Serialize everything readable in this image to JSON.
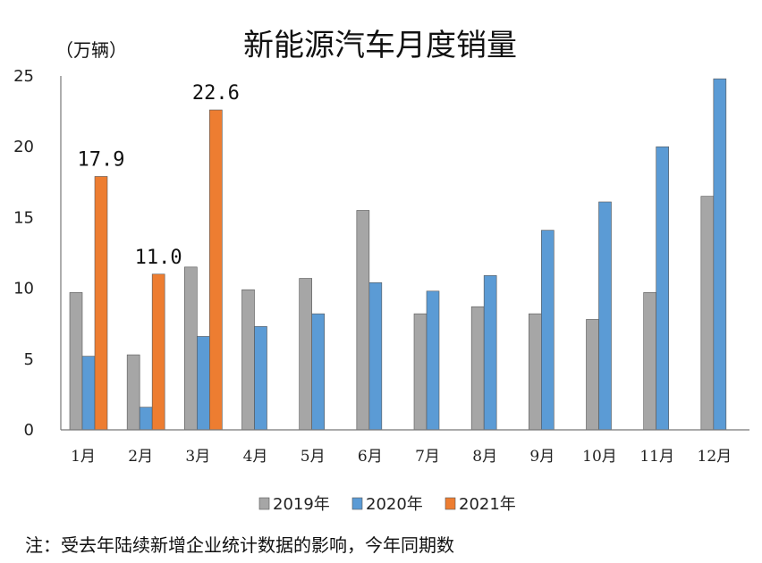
{
  "chart_data": {
    "type": "bar",
    "title": "新能源汽车月度销量",
    "unit_label": "（万辆）",
    "categories": [
      "1月",
      "2月",
      "3月",
      "4月",
      "5月",
      "6月",
      "7月",
      "8月",
      "9月",
      "10月",
      "11月",
      "12月"
    ],
    "series": [
      {
        "name": "2019年",
        "color": "#a6a6a6",
        "values": [
          9.7,
          5.3,
          11.5,
          9.9,
          10.7,
          15.5,
          8.2,
          8.7,
          8.2,
          7.8,
          9.7,
          16.5
        ]
      },
      {
        "name": "2020年",
        "color": "#5b9bd5",
        "values": [
          5.2,
          1.6,
          6.6,
          7.3,
          8.2,
          10.4,
          9.8,
          10.9,
          14.1,
          16.1,
          20.0,
          24.8
        ]
      },
      {
        "name": "2021年",
        "color": "#ed7d31",
        "values": [
          17.9,
          11.0,
          22.6,
          null,
          null,
          null,
          null,
          null,
          null,
          null,
          null,
          null
        ]
      }
    ],
    "data_labels": [
      {
        "series": "2021年",
        "category": "1月",
        "text": "17.9"
      },
      {
        "series": "2021年",
        "category": "2月",
        "text": "11.0"
      },
      {
        "series": "2021年",
        "category": "3月",
        "text": "22.6"
      }
    ],
    "yticks": [
      "0",
      "5",
      "10",
      "15",
      "20",
      "25"
    ],
    "ylim": [
      0,
      25
    ],
    "grid": false,
    "legend_position": "bottom",
    "note": "注：受去年陆续新增企业统计数据的影响，今年同期数"
  }
}
